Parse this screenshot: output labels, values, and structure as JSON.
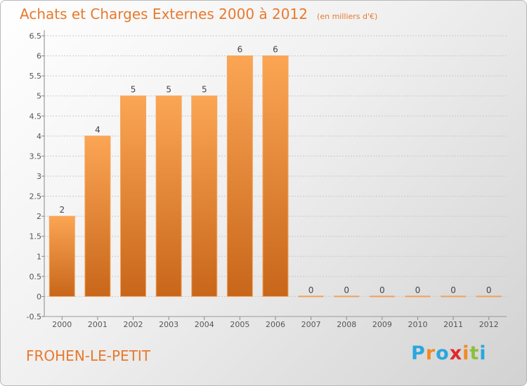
{
  "header": {
    "title": "Achats et Charges Externes 2000 à 2012",
    "unit": "(en milliers d'€)"
  },
  "footer": {
    "commune": "FROHEN-LE-PETIT",
    "logo": "Proxiti"
  },
  "colors": {
    "accent": "#e8792c",
    "bar_top": "#fba654",
    "bar_bottom": "#c8661a"
  },
  "chart_data": {
    "type": "bar",
    "title": "Achats et Charges Externes 2000 à 2012",
    "subtitle": "(en milliers d'€)",
    "categories": [
      "2000",
      "2001",
      "2002",
      "2003",
      "2004",
      "2005",
      "2006",
      "2007",
      "2008",
      "2009",
      "2010",
      "2011",
      "2012"
    ],
    "values": [
      2,
      4,
      5,
      5,
      5,
      6,
      6,
      0,
      0,
      0,
      0,
      0,
      0
    ],
    "data_labels": [
      "2",
      "4",
      "5",
      "5",
      "5",
      "6",
      "6",
      "0",
      "0",
      "0",
      "0",
      "0",
      "0"
    ],
    "y_ticks": [
      "-0.5",
      "0",
      "0.5",
      "1",
      "1.5",
      "2",
      "2.5",
      "3",
      "3.5",
      "4",
      "4.5",
      "5",
      "5.5",
      "6",
      "6.5"
    ],
    "ylim": [
      -0.5,
      6.5
    ],
    "grid": true,
    "xlabel": "",
    "ylabel": ""
  }
}
